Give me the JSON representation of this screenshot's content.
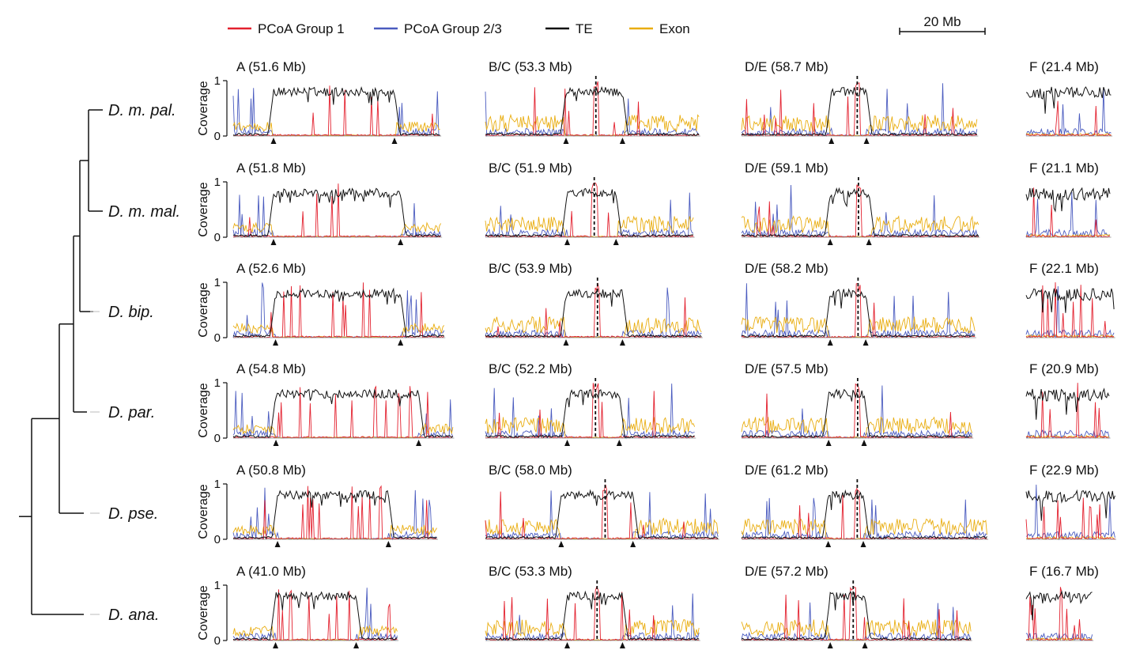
{
  "chart_data": {
    "type": "line",
    "title": "",
    "ylabel": "Coverage",
    "xlabel": "",
    "ylim": [
      0,
      1
    ],
    "yticks": [
      "0",
      "1"
    ],
    "scalebar": {
      "label": "20 Mb",
      "value_mb": 20
    },
    "legend": {
      "placement": "top",
      "entries": [
        {
          "key": "pcoa1",
          "label": "PCoA Group 1",
          "color": "#e3202e"
        },
        {
          "key": "pcoa23",
          "label": "PCoA Group 2/3",
          "color": "#4a5bbf"
        },
        {
          "key": "te",
          "label": "TE",
          "color": "#111111"
        },
        {
          "key": "exon",
          "label": "Exon",
          "color": "#e9ad10"
        }
      ]
    },
    "element_names": [
      "A",
      "B/C",
      "D/E",
      "F"
    ],
    "species": [
      {
        "name": "D. m. pal.",
        "panels": [
          {
            "element": "A",
            "title": "A (51.6 Mb)",
            "length_mb": 51.6,
            "centromere_mb": [
              10.0,
              40.0
            ]
          },
          {
            "element": "B/C",
            "title": "B/C (53.3 Mb)",
            "length_mb": 53.3,
            "centromere_mb": [
              20.0,
              34.0
            ],
            "split_mb": 27.4
          },
          {
            "element": "D/E",
            "title": "D/E (58.7 Mb)",
            "length_mb": 58.7,
            "centromere_mb": [
              22.3,
              31.0
            ],
            "split_mb": 28.7
          },
          {
            "element": "F",
            "title": "F (21.4 Mb)",
            "length_mb": 21.4
          }
        ]
      },
      {
        "name": "D. m. mal.",
        "panels": [
          {
            "element": "A",
            "title": "A (51.8 Mb)",
            "length_mb": 51.8,
            "centromere_mb": [
              10.0,
              41.5
            ]
          },
          {
            "element": "B/C",
            "title": "B/C (51.9 Mb)",
            "length_mb": 51.9,
            "centromere_mb": [
              20.3,
              32.4
            ],
            "split_mb": 27.0
          },
          {
            "element": "D/E",
            "title": "D/E (59.1 Mb)",
            "length_mb": 59.1,
            "centromere_mb": [
              22.0,
              31.6
            ],
            "split_mb": 29.0
          },
          {
            "element": "F",
            "title": "F (21.1 Mb)",
            "length_mb": 21.1
          }
        ]
      },
      {
        "name": "D. bip.",
        "panels": [
          {
            "element": "A",
            "title": "A (52.6 Mb)",
            "length_mb": 52.6,
            "centromere_mb": [
              10.5,
              41.5
            ]
          },
          {
            "element": "B/C",
            "title": "B/C (53.9 Mb)",
            "length_mb": 53.9,
            "centromere_mb": [
              20.0,
              34.0
            ],
            "split_mb": 27.8
          },
          {
            "element": "D/E",
            "title": "D/E (58.2 Mb)",
            "length_mb": 58.2,
            "centromere_mb": [
              22.0,
              30.8
            ],
            "split_mb": 28.9
          },
          {
            "element": "F",
            "title": "F (22.1 Mb)",
            "length_mb": 22.1
          }
        ]
      },
      {
        "name": "D. par.",
        "panels": [
          {
            "element": "A",
            "title": "A (54.8 Mb)",
            "length_mb": 54.8,
            "centromere_mb": [
              10.6,
              46.0
            ]
          },
          {
            "element": "B/C",
            "title": "B/C (52.2 Mb)",
            "length_mb": 52.2,
            "centromere_mb": [
              20.3,
              33.2
            ],
            "split_mb": 27.3
          },
          {
            "element": "D/E",
            "title": "D/E (57.5 Mb)",
            "length_mb": 57.5,
            "centromere_mb": [
              21.6,
              30.4
            ],
            "split_mb": 28.8
          },
          {
            "element": "F",
            "title": "F (20.9 Mb)",
            "length_mb": 20.9
          }
        ]
      },
      {
        "name": "D. pse.",
        "panels": [
          {
            "element": "A",
            "title": "A (50.8 Mb)",
            "length_mb": 50.8,
            "centromere_mb": [
              11.0,
              38.5
            ]
          },
          {
            "element": "B/C",
            "title": "B/C (58.0 Mb)",
            "length_mb": 58.0,
            "centromere_mb": [
              18.8,
              36.6
            ],
            "split_mb": 29.7
          },
          {
            "element": "D/E",
            "title": "D/E (61.2 Mb)",
            "length_mb": 61.2,
            "centromere_mb": [
              21.5,
              30.2
            ],
            "split_mb": 28.7
          },
          {
            "element": "F",
            "title": "F (22.9 Mb)",
            "length_mb": 22.9
          }
        ]
      },
      {
        "name": "D. ana.",
        "panels": [
          {
            "element": "A",
            "title": "A (41.0 Mb)",
            "length_mb": 41.0,
            "centromere_mb": [
              10.5,
              30.5
            ]
          },
          {
            "element": "B/C",
            "title": "B/C (53.3 Mb)",
            "length_mb": 53.3,
            "centromere_mb": [
              20.3,
              34.0
            ],
            "split_mb": 27.7
          },
          {
            "element": "D/E",
            "title": "D/E (57.2 Mb)",
            "length_mb": 57.2,
            "centromere_mb": [
              22.0,
              30.6
            ],
            "split_mb": 27.7
          },
          {
            "element": "F",
            "title": "F (16.7 Mb)",
            "length_mb": 16.7
          }
        ]
      }
    ],
    "profile_notes": "Coverage tracks per element: TE coverage is high (~0.8) between the centromere flank markers and near 0 elsewhere; Exon coverage is ~0.2-0.3 on the arms; PCoA group tracks are sparse spikes."
  }
}
